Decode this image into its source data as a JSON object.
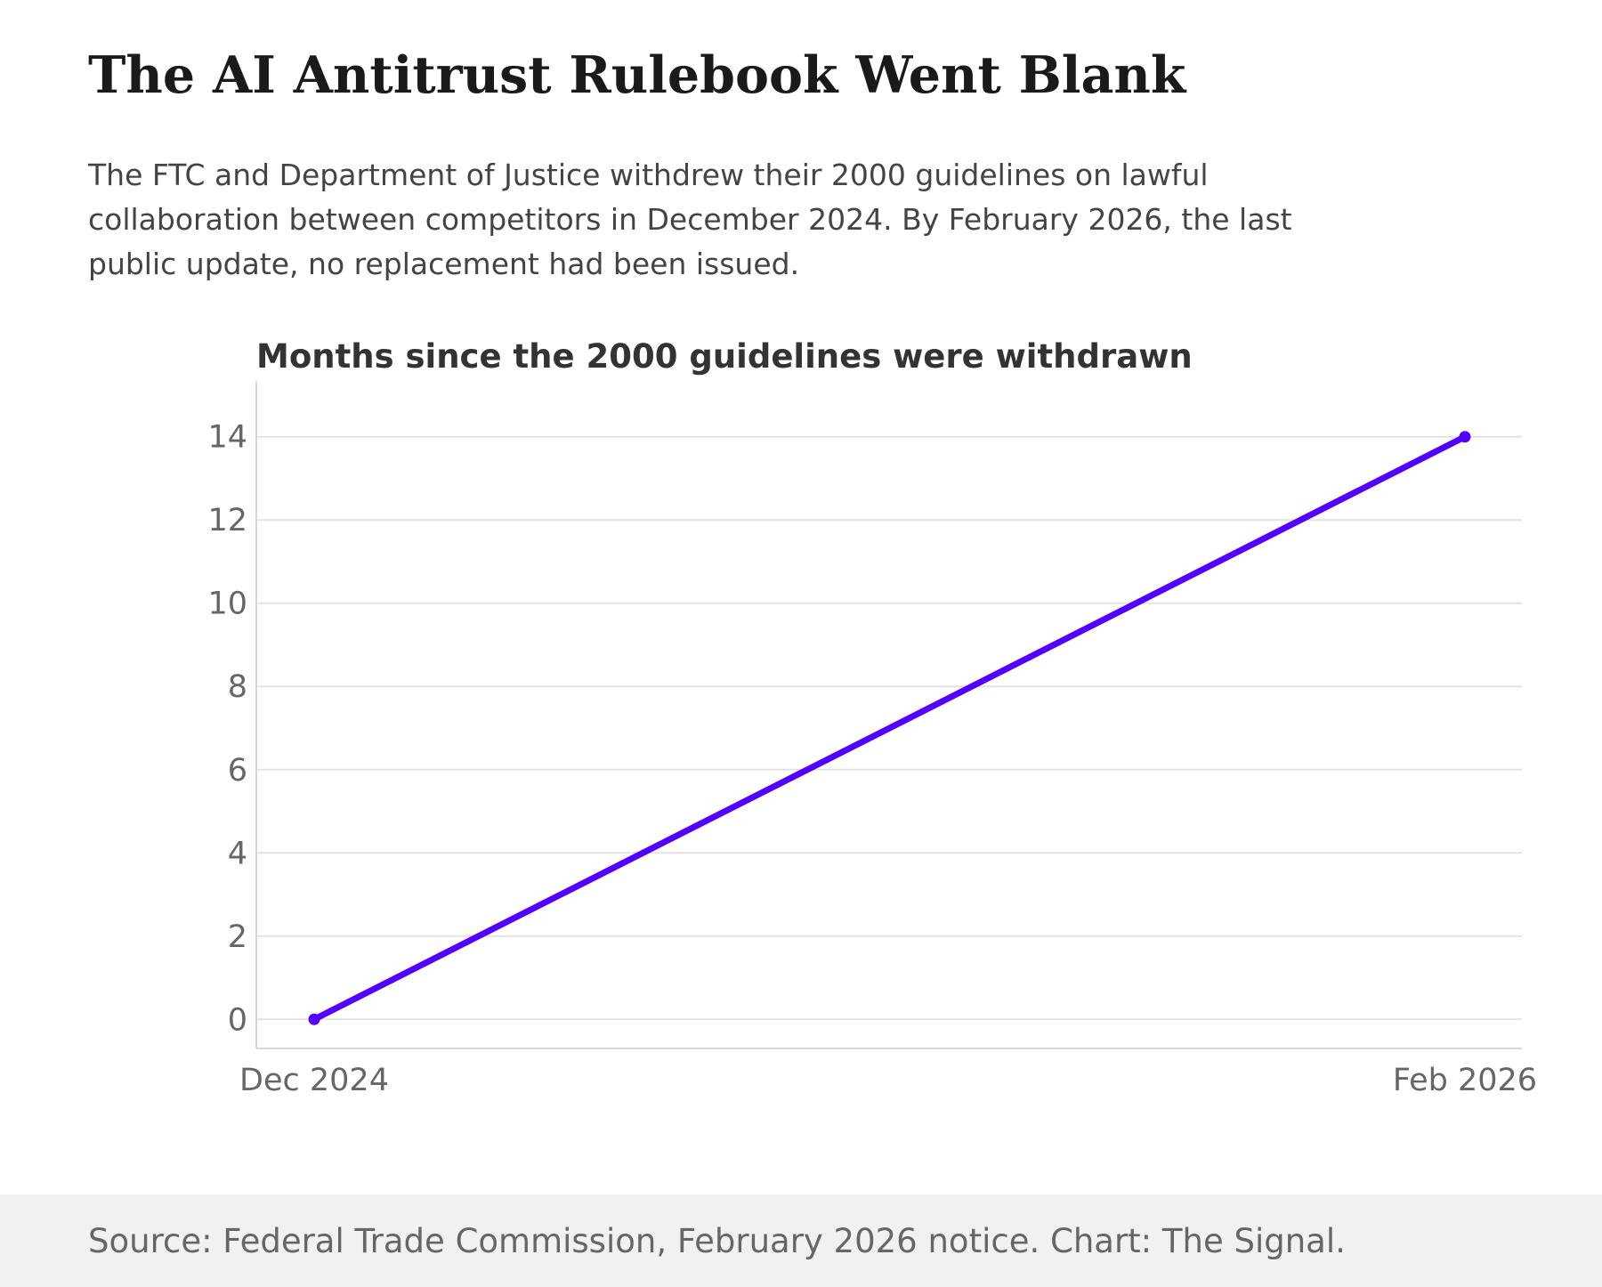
{
  "headline": "The AI Antitrust Rulebook Went Blank",
  "dek": "The FTC and Department of Justice withdrew their 2000 guidelines on lawful collaboration between competitors in December 2024. By February 2026, the last public update, no replacement had been issued.",
  "source": "Source: Federal Trade Commission, February 2026 notice. Chart: The Signal.",
  "colors": {
    "line": "#5200ff",
    "grid": "#e3e3e3",
    "axis": "#d8d8d8",
    "tick_text": "#666666",
    "footer_bg": "#f2f1ef"
  },
  "chart_data": {
    "type": "line",
    "title": "Months since the 2000 guidelines were withdrawn",
    "xlabel": "",
    "ylabel": "",
    "x": [
      "Dec 2024",
      "Feb 2026"
    ],
    "x_tick_labels": [
      "Dec 2024",
      "Feb 2026"
    ],
    "series": [
      {
        "values": [
          0,
          14
        ],
        "color": "#5200ff"
      }
    ],
    "ylim": [
      -0.7,
      14.7
    ],
    "y_ticks": [
      0,
      2,
      4,
      6,
      8,
      10,
      12,
      14
    ],
    "grid": true,
    "legend": "none"
  }
}
